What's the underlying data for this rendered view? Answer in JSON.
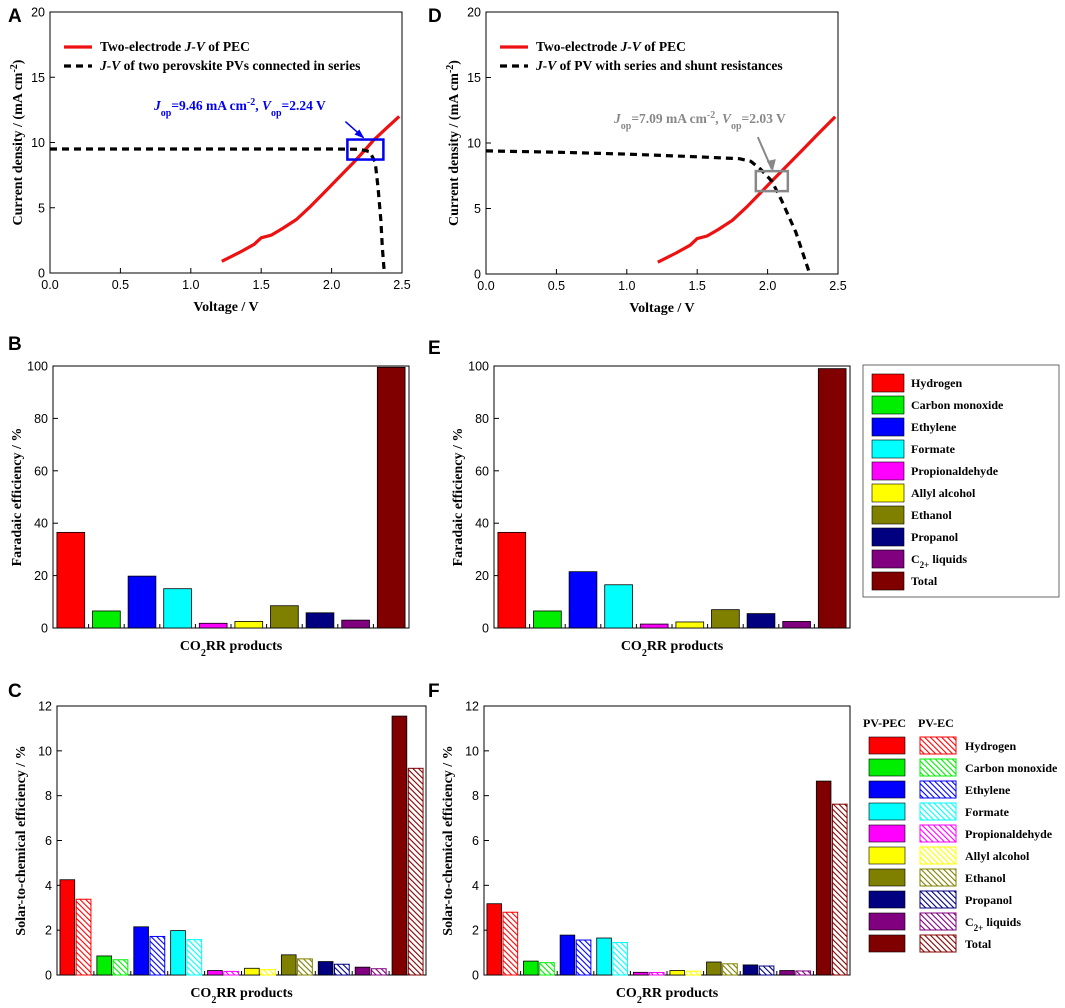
{
  "figure_labels": [
    "A",
    "D",
    "B",
    "E",
    "C",
    "F"
  ],
  "colors": {
    "hydrogen": "#ff0000",
    "carbon_monoxide": "#00ee00",
    "ethylene": "#0000ff",
    "formate": "#00ffff",
    "propionaldehyde": "#ff00ff",
    "allyl_alcohol": "#ffff00",
    "ethanol": "#808000",
    "propanol": "#000080",
    "c2_liquids": "#800080",
    "total": "#800000",
    "pec_curve": "#ee1111",
    "pv_curve": "#000000",
    "box_A": "#0000ee",
    "box_D": "#888888"
  },
  "legend_products": {
    "items": [
      "Hydrogen",
      "Carbon monoxide",
      "Ethylene",
      "Formate",
      "Propionaldehyde",
      "Allyl alcohol",
      "Ethanol",
      "Propanol",
      "C2+ liquids",
      "Total"
    ],
    "c2_main": "C",
    "c2_sub": "2+",
    "c2_rest": " liquids"
  },
  "legend_methods": {
    "pvpec": "PV-PEC",
    "pvec": "PV-EC"
  },
  "chart_data": [
    {
      "id": "A",
      "type": "line",
      "xlabel": "Voltage / V",
      "ylabel": "Current density / (mA cm-2)",
      "xlim": [
        0,
        2.5
      ],
      "ylim": [
        0,
        20
      ],
      "xticks": [
        "0.0",
        "0.5",
        "1.0",
        "1.5",
        "2.0",
        "2.5"
      ],
      "yticks": [
        "0",
        "5",
        "10",
        "15",
        "20"
      ],
      "series": [
        {
          "name": "Two-electrode J-V of PEC",
          "style": "solid",
          "x": [
            1.22,
            1.35,
            1.45,
            1.5,
            1.57,
            1.65,
            1.75,
            1.85,
            1.95,
            2.05,
            2.15,
            2.24,
            2.3,
            2.4,
            2.48
          ],
          "y": [
            0.9,
            1.6,
            2.2,
            2.7,
            2.9,
            3.4,
            4.1,
            5.1,
            6.2,
            7.3,
            8.4,
            9.46,
            10.2,
            11.2,
            12.0
          ]
        },
        {
          "name": "J-V of two perovskite PVs connected in series",
          "style": "dashed",
          "x": [
            0,
            0.5,
            1.0,
            1.5,
            2.0,
            2.2,
            2.27,
            2.31,
            2.33,
            2.35,
            2.36,
            2.37,
            2.375
          ],
          "y": [
            9.5,
            9.5,
            9.5,
            9.5,
            9.5,
            9.48,
            9.3,
            8.5,
            6.5,
            4.0,
            2.0,
            0.6,
            0
          ]
        }
      ],
      "legend": {
        "l1_main": "Two-electrode ",
        "l1_it": "J-V",
        "l1_rest": " of PEC",
        "l2_it": "J-V",
        "l2_rest": " of two perovskite PVs connected in series"
      },
      "operating_point": {
        "J": 9.46,
        "V": 2.24,
        "j_label": "=9.46 mA cm",
        "v_label": "=2.24 V",
        "sym_J": "J",
        "sym_V": "V",
        "sub": "op",
        "sup": "-2"
      }
    },
    {
      "id": "D",
      "type": "line",
      "xlabel": "Voltage / V",
      "ylabel": "Current density / (mA cm-2)",
      "xlim": [
        0,
        2.5
      ],
      "ylim": [
        0,
        20
      ],
      "xticks": [
        "0.0",
        "0.5",
        "1.0",
        "1.5",
        "2.0",
        "2.5"
      ],
      "yticks": [
        "0",
        "5",
        "10",
        "15",
        "20"
      ],
      "series": [
        {
          "name": "Two-electrode J-V of PEC",
          "style": "solid",
          "x": [
            1.22,
            1.35,
            1.45,
            1.5,
            1.57,
            1.65,
            1.75,
            1.85,
            1.95,
            2.03,
            2.15,
            2.25,
            2.35,
            2.48
          ],
          "y": [
            0.9,
            1.6,
            2.2,
            2.7,
            2.9,
            3.4,
            4.1,
            5.1,
            6.2,
            7.09,
            8.4,
            9.5,
            10.6,
            12.0
          ]
        },
        {
          "name": "J-V of PV with series and shunt resistances",
          "style": "dashed",
          "x": [
            0,
            0.5,
            1.0,
            1.5,
            1.8,
            1.88,
            1.95,
            2.03,
            2.1,
            2.2,
            2.3
          ],
          "y": [
            9.4,
            9.3,
            9.15,
            8.95,
            8.8,
            8.6,
            8.0,
            7.09,
            5.6,
            3.2,
            0
          ]
        }
      ],
      "legend": {
        "l1_main": "Two-electrode ",
        "l1_it": "J-V",
        "l1_rest": " of PEC",
        "l2_it": "J-V",
        "l2_rest": " of PV with series and shunt resistances"
      },
      "operating_point": {
        "J": 7.09,
        "V": 2.03,
        "j_label": "=7.09 mA cm",
        "v_label": "=2.03 V",
        "sym_J": "J",
        "sym_V": "V",
        "sub": "op",
        "sup": "-2"
      }
    },
    {
      "id": "B",
      "type": "bar",
      "xlabel": "CO2RR products",
      "ylabel": "Faradaic efficiency / %",
      "ylim": [
        0,
        100
      ],
      "yticks": [
        "0",
        "20",
        "40",
        "60",
        "80",
        "100"
      ],
      "categories": [
        "Hydrogen",
        "Carbon monoxide",
        "Ethylene",
        "Formate",
        "Propionaldehyde",
        "Allyl alcohol",
        "Ethanol",
        "Propanol",
        "C2+ liquids",
        "Total"
      ],
      "values": [
        36.5,
        6.5,
        19.8,
        15.0,
        1.8,
        2.5,
        8.5,
        5.8,
        3.0,
        99.5
      ]
    },
    {
      "id": "E",
      "type": "bar",
      "xlabel": "CO2RR products",
      "ylabel": "Faradaic efficiency / %",
      "ylim": [
        0,
        100
      ],
      "yticks": [
        "0",
        "20",
        "40",
        "60",
        "80",
        "100"
      ],
      "categories": [
        "Hydrogen",
        "Carbon monoxide",
        "Ethylene",
        "Formate",
        "Propionaldehyde",
        "Allyl alcohol",
        "Ethanol",
        "Propanol",
        "C2+ liquids",
        "Total"
      ],
      "values": [
        36.5,
        6.5,
        21.5,
        16.5,
        1.5,
        2.3,
        7.0,
        5.5,
        2.5,
        99.0
      ]
    },
    {
      "id": "C",
      "type": "bar",
      "xlabel": "CO2RR products",
      "ylabel": "Solar-to-chemical efficiency / %",
      "ylim": [
        0,
        12
      ],
      "yticks": [
        "0",
        "2",
        "4",
        "6",
        "8",
        "10",
        "12"
      ],
      "categories": [
        "Hydrogen",
        "Carbon monoxide",
        "Ethylene",
        "Formate",
        "Propionaldehyde",
        "Allyl alcohol",
        "Ethanol",
        "Propanol",
        "C2+ liquids",
        "Total"
      ],
      "series": [
        {
          "name": "PV-PEC",
          "values": [
            4.25,
            0.85,
            2.15,
            1.98,
            0.2,
            0.3,
            0.9,
            0.6,
            0.35,
            11.55
          ]
        },
        {
          "name": "PV-EC",
          "values": [
            3.38,
            0.68,
            1.72,
            1.58,
            0.16,
            0.24,
            0.72,
            0.48,
            0.28,
            9.22
          ]
        }
      ]
    },
    {
      "id": "F",
      "type": "bar",
      "xlabel": "CO2RR products",
      "ylabel": "Solar-to-chemical efficiency / %",
      "ylim": [
        0,
        12
      ],
      "yticks": [
        "0",
        "2",
        "4",
        "6",
        "8",
        "10",
        "12"
      ],
      "categories": [
        "Hydrogen",
        "Carbon monoxide",
        "Ethylene",
        "Formate",
        "Propionaldehyde",
        "Allyl alcohol",
        "Ethanol",
        "Propanol",
        "C2+ liquids",
        "Total"
      ],
      "series": [
        {
          "name": "PV-PEC",
          "values": [
            3.18,
            0.62,
            1.78,
            1.65,
            0.12,
            0.2,
            0.58,
            0.45,
            0.2,
            8.65
          ]
        },
        {
          "name": "PV-EC",
          "values": [
            2.8,
            0.55,
            1.56,
            1.45,
            0.11,
            0.17,
            0.5,
            0.4,
            0.18,
            7.62
          ]
        }
      ]
    }
  ]
}
